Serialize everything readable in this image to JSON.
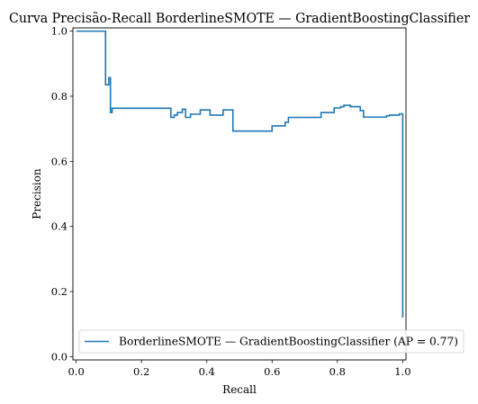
{
  "chart_data": {
    "type": "line",
    "title": "Curva Precisão-Recall BorderlineSMOTE — GradientBoostingClassifier",
    "xlabel": "Recall",
    "ylabel": "Precision",
    "xlim": [
      -0.01,
      1.01
    ],
    "ylim": [
      -0.01,
      1.01
    ],
    "xticks": [
      "0.0",
      "0.2",
      "0.4",
      "0.6",
      "0.8",
      "1.0"
    ],
    "yticks": [
      "0.0",
      "0.2",
      "0.4",
      "0.6",
      "0.8",
      "1.0"
    ],
    "grid": false,
    "legend_position": "bottom-right",
    "color": "#1f77b4",
    "series": [
      {
        "name": "BorderlineSMOTE — GradientBoostingClassifier (AP = 0.77)",
        "drawstyle": "steps-post",
        "recall": [
          0.0,
          0.09,
          0.09,
          0.1,
          0.105,
          0.11,
          0.28,
          0.29,
          0.3,
          0.31,
          0.325,
          0.335,
          0.35,
          0.38,
          0.39,
          0.41,
          0.45,
          0.48,
          0.6,
          0.62,
          0.64,
          0.65,
          0.7,
          0.75,
          0.76,
          0.79,
          0.8,
          0.81,
          0.82,
          0.84,
          0.87,
          0.88,
          0.94,
          0.95,
          0.96,
          0.99,
          1.0,
          1.0
        ],
        "precision": [
          1.0,
          1.0,
          0.835,
          0.857,
          0.75,
          0.763,
          0.763,
          0.735,
          0.742,
          0.75,
          0.76,
          0.735,
          0.745,
          0.758,
          0.758,
          0.742,
          0.758,
          0.693,
          0.709,
          0.709,
          0.72,
          0.735,
          0.735,
          0.75,
          0.75,
          0.764,
          0.764,
          0.768,
          0.772,
          0.768,
          0.756,
          0.736,
          0.736,
          0.74,
          0.742,
          0.746,
          0.746,
          0.12
        ]
      }
    ]
  }
}
